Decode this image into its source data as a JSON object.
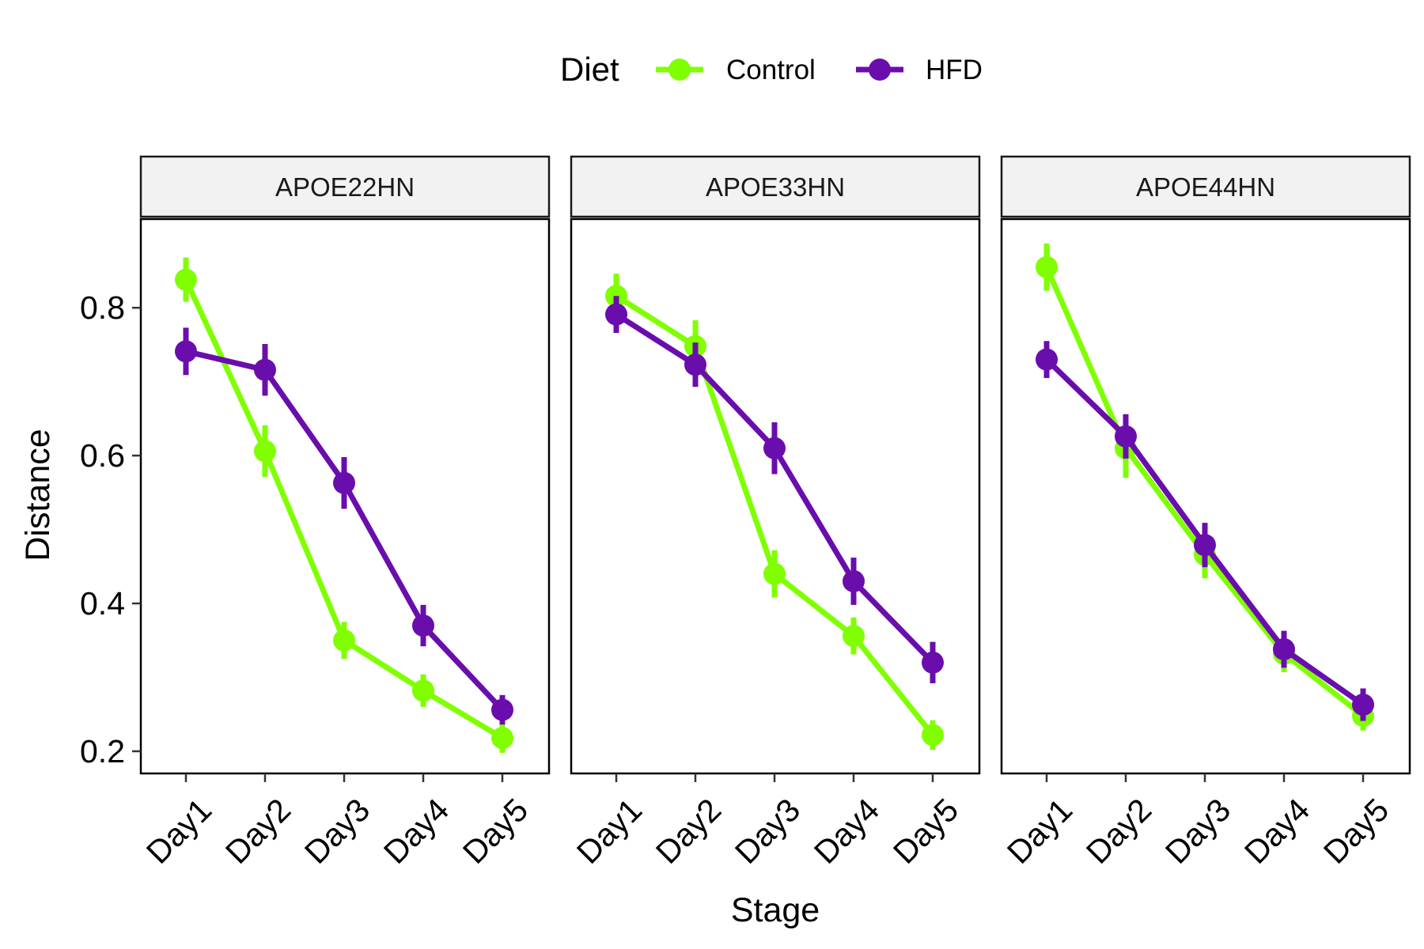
{
  "chart_data": {
    "type": "line",
    "facet_variable": "",
    "facets": [
      "APOE22HN",
      "APOE33HN",
      "APOE44HN"
    ],
    "categories": [
      "Day1",
      "Day2",
      "Day3",
      "Day4",
      "Day5"
    ],
    "xlabel": "Stage",
    "ylabel": "Distance",
    "ylim": [
      0.17,
      0.92
    ],
    "yticks": [
      0.2,
      0.4,
      0.6,
      0.8
    ],
    "ytick_labels": [
      "0.2",
      "0.4",
      "0.6",
      "0.8"
    ],
    "grid": false,
    "legend": {
      "title": "Diet",
      "position": "top"
    },
    "series": [
      {
        "name": "Control",
        "color": "#7FFF00",
        "panels": [
          {
            "facet": "APOE22HN",
            "values": [
              0.838,
              0.606,
              0.35,
              0.282,
              0.218
            ],
            "err": [
              0.03,
              0.035,
              0.025,
              0.022,
              0.02
            ]
          },
          {
            "facet": "APOE33HN",
            "values": [
              0.816,
              0.748,
              0.44,
              0.356,
              0.222
            ],
            "err": [
              0.03,
              0.035,
              0.032,
              0.025,
              0.02
            ]
          },
          {
            "facet": "APOE44HN",
            "values": [
              0.855,
              0.61,
              0.466,
              0.332,
              0.248
            ],
            "err": [
              0.032,
              0.04,
              0.032,
              0.025,
              0.02
            ]
          }
        ]
      },
      {
        "name": "HFD",
        "color": "#6A0DAD",
        "panels": [
          {
            "facet": "APOE22HN",
            "values": [
              0.741,
              0.716,
              0.563,
              0.37,
              0.256
            ],
            "err": [
              0.032,
              0.035,
              0.035,
              0.028,
              0.02
            ]
          },
          {
            "facet": "APOE33HN",
            "values": [
              0.791,
              0.723,
              0.61,
              0.43,
              0.32
            ],
            "err": [
              0.025,
              0.03,
              0.035,
              0.032,
              0.028
            ]
          },
          {
            "facet": "APOE44HN",
            "values": [
              0.73,
              0.626,
              0.479,
              0.338,
              0.263
            ],
            "err": [
              0.025,
              0.03,
              0.03,
              0.025,
              0.022
            ]
          }
        ]
      }
    ]
  }
}
